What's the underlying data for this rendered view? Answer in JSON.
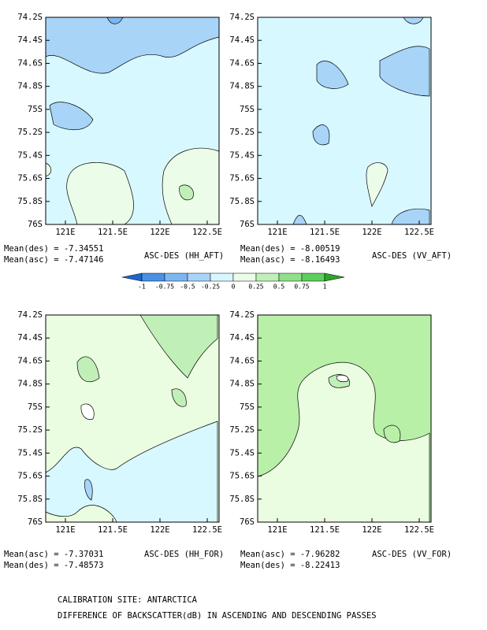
{
  "panels": [
    {
      "title": "ASC-DES (HH_AFT)",
      "means": [
        "Mean(des) = -7.34551",
        "Mean(asc) = -7.47146"
      ]
    },
    {
      "title": "ASC-DES (VV_AFT)",
      "means": [
        "Mean(des) = -8.00519",
        "Mean(asc) = -8.16493"
      ]
    },
    {
      "title": "ASC-DES (HH_FOR)",
      "means": [
        "Mean(asc) = -7.37031",
        "Mean(des) = -7.48573"
      ]
    },
    {
      "title": "ASC-DES (VV_FOR)",
      "means": [
        "Mean(asc) = -7.96282",
        "Mean(des) = -8.22413"
      ]
    }
  ],
  "y_tick_labels": [
    "74.2S",
    "74.4S",
    "74.6S",
    "74.8S",
    "75S",
    "75.2S",
    "75.4S",
    "75.6S",
    "75.8S",
    "76S"
  ],
  "x_tick_labels": [
    "121E",
    "121.5E",
    "122E",
    "122.5E"
  ],
  "colorbar": {
    "labels": [
      "-1",
      "-0.75",
      "-0.5",
      "-0.25",
      "0",
      "0.25",
      "0.5",
      "0.75",
      "1"
    ],
    "colors": [
      "#1e64d2",
      "#4a90e6",
      "#7cb6f2",
      "#a8d4f8",
      "#d8f6ff",
      "#ebfde8",
      "#c0f0b8",
      "#8fe088",
      "#5cce5c",
      "#28a828"
    ]
  },
  "footer": [
    "CALIBRATION SITE: ANTARCTICA",
    "DIFFERENCE OF BACKSCATTER(dB) IN ASCENDING AND DESCENDING PASSES"
  ]
}
